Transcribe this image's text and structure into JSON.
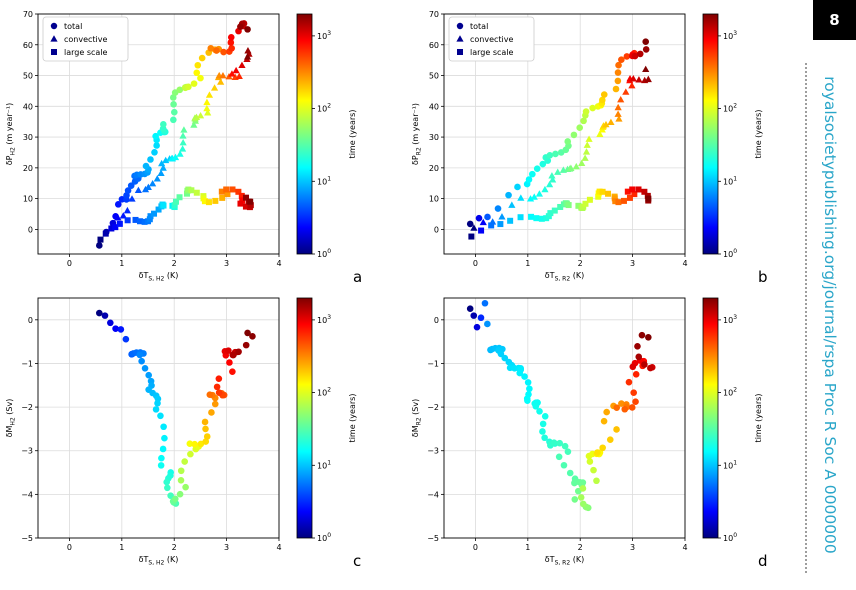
{
  "page": {
    "number": "8",
    "journal": "royalsocietypublishing.org/journal/rspa  Proc R Soc A 0000000"
  },
  "legend": [
    "total",
    "convective",
    "large scale"
  ],
  "colorbar": {
    "label": "time (years)",
    "ticks": [
      "10",
      "10",
      "10",
      "10"
    ],
    "exps": [
      "0",
      "1",
      "2",
      "3"
    ]
  },
  "panels": [
    {
      "id": "a",
      "ylabel": "δP",
      "ysub": "H2",
      "yunit": " (m year⁻¹)",
      "xlabel": "δT",
      "xsub": "S, H2",
      "xunit": " (K)",
      "yticks": [
        "70",
        "60",
        "50",
        "40",
        "30",
        "20",
        "10",
        "0"
      ],
      "xticks": [
        "0",
        "1",
        "2",
        "3",
        "4"
      ]
    },
    {
      "id": "b",
      "ylabel": "δP",
      "ysub": "R2",
      "yunit": " (m year⁻¹)",
      "xlabel": "δT",
      "xsub": "S, R2",
      "xunit": " (K)",
      "yticks": [
        "70",
        "60",
        "50",
        "40",
        "30",
        "20",
        "10",
        "0"
      ],
      "xticks": [
        "0",
        "1",
        "2",
        "3",
        "4"
      ]
    },
    {
      "id": "c",
      "ylabel": "δM",
      "ysub": "H2",
      "yunit": " (Sv)",
      "xlabel": "δT",
      "xsub": "S, H2",
      "xunit": " (K)",
      "yticks": [
        "0",
        "−1",
        "−2",
        "−3",
        "−4",
        "−5"
      ],
      "xticks": [
        "0",
        "1",
        "2",
        "3",
        "4"
      ]
    },
    {
      "id": "d",
      "ylabel": "δM",
      "ysub": "R2",
      "yunit": " (Sv)",
      "xlabel": "δT",
      "xsub": "S, R2",
      "xunit": " (K)",
      "yticks": [
        "0",
        "−1",
        "−2",
        "−3",
        "−4",
        "−5"
      ],
      "xticks": [
        "0",
        "1",
        "2",
        "3",
        "4"
      ]
    }
  ],
  "chart_data": [
    {
      "type": "scatter",
      "panel": "a",
      "xlim": [
        -0.6,
        4
      ],
      "ylim": [
        -8,
        70
      ],
      "yscale_label": "log colour scale of time (years), 1 to 2000",
      "series": [
        {
          "name": "total",
          "marker": "circle",
          "x": [
            0.57,
            0.8,
            0.9,
            1.1,
            1.3,
            1.5,
            1.7,
            1.9,
            2.2,
            2.5,
            2.8,
            3.1,
            3.4
          ],
          "y": [
            -6,
            3,
            7,
            11,
            16,
            22,
            30,
            37,
            45,
            52,
            58,
            63,
            65
          ],
          "t": [
            1,
            2,
            3,
            4,
            6,
            10,
            18,
            30,
            60,
            120,
            300,
            800,
            2000
          ]
        },
        {
          "name": "convective",
          "marker": "triangle",
          "x": [
            0.8,
            1.0,
            1.2,
            1.5,
            1.8,
            2.0,
            2.3,
            2.6,
            2.9,
            3.2,
            3.4
          ],
          "y": [
            1,
            5,
            9,
            14,
            20,
            25,
            32,
            40,
            47,
            53,
            56
          ],
          "t": [
            2,
            3,
            4,
            6,
            10,
            18,
            40,
            90,
            220,
            700,
            2000
          ]
        },
        {
          "name": "large scale",
          "marker": "square",
          "x": [
            0.57,
            0.8,
            1.0,
            1.3,
            1.6,
            1.9,
            2.2,
            2.6,
            3.0,
            3.3,
            3.45
          ],
          "y": [
            -3,
            0,
            2,
            3,
            5,
            8,
            11,
            11,
            11,
            10,
            9
          ],
          "t": [
            1,
            2,
            3,
            5,
            8,
            16,
            40,
            100,
            300,
            900,
            2000
          ]
        }
      ]
    },
    {
      "type": "scatter",
      "panel": "b",
      "xlim": [
        -0.6,
        4
      ],
      "ylim": [
        -8,
        70
      ],
      "series": [
        {
          "name": "total",
          "marker": "circle",
          "x": [
            -0.1,
            0.2,
            0.6,
            1.0,
            1.4,
            1.8,
            2.2,
            2.6,
            3.0,
            3.25
          ],
          "y": [
            1,
            5,
            10,
            16,
            22,
            30,
            38,
            47,
            56,
            61
          ],
          "t": [
            1,
            5,
            10,
            16,
            25,
            45,
            90,
            200,
            600,
            2000
          ]
        },
        {
          "name": "convective",
          "marker": "triangle",
          "x": [
            -0.05,
            0.3,
            0.7,
            1.1,
            1.5,
            1.9,
            2.3,
            2.7,
            3.0,
            3.25
          ],
          "y": [
            0,
            3,
            7,
            11,
            16,
            22,
            29,
            38,
            46,
            52
          ],
          "t": [
            1,
            6,
            11,
            17,
            27,
            50,
            100,
            240,
            700,
            2000
          ]
        },
        {
          "name": "large scale",
          "marker": "square",
          "x": [
            -0.1,
            0.3,
            0.7,
            1.1,
            1.5,
            1.9,
            2.3,
            2.7,
            3.0,
            3.3
          ],
          "y": [
            -2,
            1,
            3,
            4,
            6,
            8,
            10,
            11,
            11,
            10
          ],
          "t": [
            1,
            6,
            11,
            17,
            27,
            50,
            100,
            240,
            700,
            2000
          ]
        }
      ]
    },
    {
      "type": "scatter",
      "panel": "c",
      "xlim": [
        -0.6,
        4
      ],
      "ylim": [
        -5,
        0.5
      ],
      "series": [
        {
          "name": "total",
          "marker": "circle",
          "x": [
            0.57,
            0.75,
            0.95,
            1.2,
            1.4,
            1.55,
            1.7,
            1.85,
            2.0,
            2.2,
            2.4,
            2.6,
            2.8,
            3.0,
            3.2,
            3.4
          ],
          "y": [
            0.1,
            0,
            -0.3,
            -0.7,
            -0.9,
            -1.5,
            -2.3,
            -3.4,
            -4.3,
            -3.6,
            -2.9,
            -2.3,
            -1.7,
            -1.2,
            -0.7,
            -0.3
          ],
          "t": [
            1,
            2,
            3,
            5,
            7,
            10,
            14,
            20,
            30,
            60,
            110,
            200,
            380,
            700,
            1200,
            2000
          ]
        }
      ]
    },
    {
      "type": "scatter",
      "panel": "d",
      "xlim": [
        -0.6,
        4
      ],
      "ylim": [
        -5,
        0.5
      ],
      "series": [
        {
          "name": "total",
          "marker": "circle",
          "x": [
            -0.1,
            0.0,
            0.15,
            0.3,
            0.5,
            0.7,
            0.9,
            1.1,
            1.3,
            1.5,
            1.7,
            1.9,
            2.0,
            2.2,
            2.4,
            2.6,
            2.8,
            3.0,
            3.2,
            3.3
          ],
          "y": [
            0.2,
            -0.1,
            0.3,
            -0.6,
            -0.8,
            -1.0,
            -1.4,
            -1.8,
            -2.3,
            -2.8,
            -3.2,
            -3.7,
            -4.3,
            -3.7,
            -3.0,
            -2.4,
            -1.9,
            -1.4,
            -0.9,
            -0.4
          ],
          "t": [
            1,
            2,
            6,
            10,
            12,
            14,
            16,
            18,
            20,
            24,
            30,
            36,
            42,
            70,
            120,
            200,
            350,
            600,
            1100,
            2000
          ]
        }
      ]
    }
  ]
}
